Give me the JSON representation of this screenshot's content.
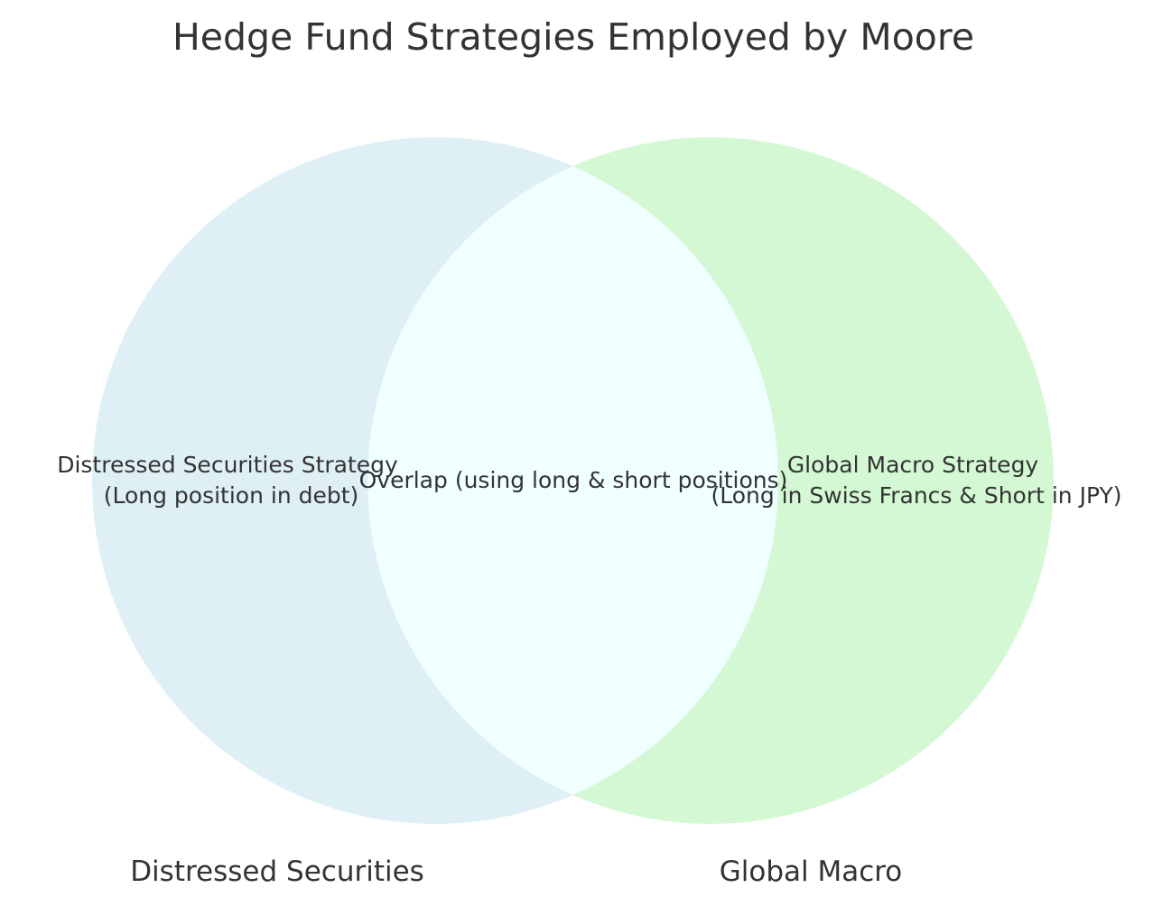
{
  "title": "Hedge Fund Strategies Employed by Moore",
  "sets": [
    {
      "id": "distressed",
      "label": "Distressed Securities",
      "region_lines": [
        "Distressed Securities Strategy",
        "(Long position in debt)"
      ],
      "color": "#ADD8E6"
    },
    {
      "id": "macro",
      "label": "Global Macro",
      "region_lines": [
        "Global Macro Strategy",
        "(Long in Swiss Francs & Short in JPY)"
      ],
      "color": "#90EE90"
    }
  ],
  "overlap": {
    "text": "Overlap (using long & short positions)",
    "color": "#F0FFFF"
  }
}
